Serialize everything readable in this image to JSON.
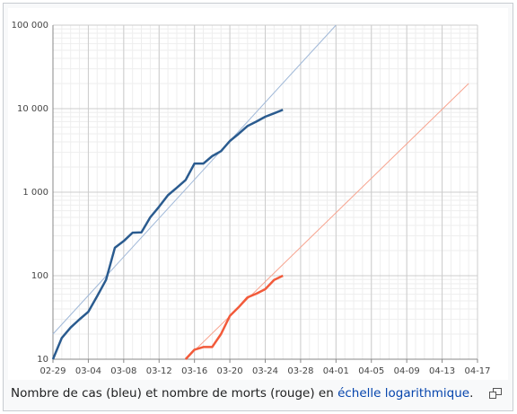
{
  "chart_data": {
    "type": "line",
    "log_scale": true,
    "grid": true,
    "xlim": [
      "02-29",
      "04-17"
    ],
    "xticks": [
      "02-29",
      "03-04",
      "03-08",
      "03-12",
      "03-16",
      "03-20",
      "03-24",
      "03-28",
      "04-01",
      "04-05",
      "04-09",
      "04-13",
      "04-17"
    ],
    "ylim": [
      10,
      100000
    ],
    "yticks": [
      10,
      100,
      {
        "value": 1000,
        "label": "1 000"
      },
      {
        "value": 10000,
        "label": "10 000"
      },
      {
        "value": 100000,
        "label": "100 000"
      }
    ],
    "series": [
      {
        "color": "#a0b8d8",
        "line_width": 1,
        "x": [
          "02-29",
          "04-01"
        ],
        "values": [
          20,
          100000
        ]
      },
      {
        "color": "#f7a28d",
        "line_width": 1,
        "x": [
          "03-15",
          "04-16"
        ],
        "values": [
          10,
          20000
        ]
      },
      {
        "color": "#2a5b8f",
        "line_width": 2.5,
        "x": [
          "02-29",
          "03-01",
          "03-02",
          "03-03",
          "03-04",
          "03-05",
          "03-06",
          "03-07",
          "03-08",
          "03-09",
          "03-10",
          "03-11",
          "03-12",
          "03-13",
          "03-14",
          "03-15",
          "03-16",
          "03-17",
          "03-18",
          "03-19",
          "03-20",
          "03-21",
          "03-22",
          "03-23",
          "03-24",
          "03-25",
          "03-26"
        ],
        "values": [
          10,
          18,
          24,
          30,
          37,
          57,
          89,
          216,
          260,
          327,
          330,
          500,
          670,
          920,
          1130,
          1400,
          2200,
          2200,
          2700,
          3100,
          4100,
          5000,
          6200,
          7000,
          8000,
          8800,
          9700
        ]
      },
      {
        "color": "#f25a3a",
        "line_width": 2.5,
        "x": [
          "03-15",
          "03-16",
          "03-17",
          "03-18",
          "03-19",
          "03-20",
          "03-21",
          "03-22",
          "03-23",
          "03-24",
          "03-25",
          "03-26"
        ],
        "values": [
          10,
          13,
          14,
          14,
          20,
          33,
          42,
          55,
          61,
          69,
          89,
          100
        ]
      }
    ]
  },
  "caption": {
    "text_before": "Nombre de cas (bleu) et nombre de morts (rouge) en ",
    "link": "échelle logarithmique",
    "text_after": "."
  }
}
